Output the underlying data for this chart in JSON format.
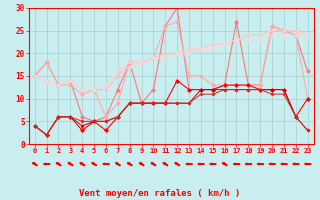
{
  "x": [
    0,
    1,
    2,
    3,
    4,
    5,
    6,
    7,
    8,
    9,
    10,
    11,
    12,
    13,
    14,
    15,
    16,
    17,
    18,
    19,
    20,
    21,
    22,
    23
  ],
  "series": [
    {
      "color": "#ff7777",
      "marker": "D",
      "markersize": 2.5,
      "linewidth": 0.8,
      "values": [
        15,
        18,
        13,
        14,
        6,
        5,
        6,
        12,
        18,
        9,
        12,
        26,
        30,
        12,
        12,
        12,
        13,
        27,
        13,
        13,
        26,
        25,
        24,
        16
      ]
    },
    {
      "color": "#ffaaaa",
      "marker": "D",
      "markersize": 2.5,
      "linewidth": 0.8,
      "values": [
        15,
        18,
        13,
        13,
        11,
        12,
        6,
        9,
        18,
        18,
        19,
        26,
        27,
        15,
        15,
        13,
        13,
        13,
        13,
        13,
        26,
        25,
        24,
        10
      ]
    },
    {
      "color": "#ffbbbb",
      "marker": "D",
      "markersize": 2,
      "linewidth": 0.7,
      "values": [
        15,
        14,
        13,
        14,
        12,
        12,
        12,
        15,
        18,
        18,
        19,
        20,
        20,
        20,
        21,
        22,
        22,
        23,
        24,
        24,
        25,
        25,
        25,
        24
      ]
    },
    {
      "color": "#ffcccc",
      "marker": "D",
      "markersize": 2,
      "linewidth": 0.7,
      "values": [
        15,
        14,
        13,
        14,
        12,
        12,
        13,
        16,
        18,
        18,
        19,
        19,
        20,
        21,
        21,
        22,
        22,
        23,
        24,
        24,
        25,
        25,
        25,
        24
      ]
    },
    {
      "color": "#ffd5d5",
      "marker": "D",
      "markersize": 2,
      "linewidth": 0.7,
      "values": [
        15,
        14,
        13,
        14,
        12,
        12,
        13,
        16,
        17,
        18,
        19,
        19,
        20,
        20,
        21,
        21,
        22,
        23,
        23,
        23,
        24,
        24,
        24,
        24
      ]
    },
    {
      "color": "#ff0000",
      "marker": "D",
      "markersize": 2.5,
      "linewidth": 0.8,
      "values": [
        4,
        2,
        6,
        6,
        3,
        5,
        3,
        6,
        9,
        9,
        9,
        9,
        14,
        12,
        12,
        12,
        13,
        13,
        13,
        12,
        12,
        12,
        6,
        10
      ]
    },
    {
      "color": "#cc0000",
      "marker": "D",
      "markersize": 2,
      "linewidth": 0.7,
      "values": [
        4,
        2,
        6,
        6,
        4,
        5,
        5,
        6,
        9,
        9,
        9,
        9,
        9,
        9,
        12,
        12,
        12,
        12,
        12,
        12,
        12,
        12,
        6,
        3
      ]
    },
    {
      "color": "#dd2222",
      "marker": "D",
      "markersize": 2,
      "linewidth": 0.7,
      "values": [
        4,
        2,
        6,
        6,
        5,
        5,
        5,
        6,
        9,
        9,
        9,
        9,
        9,
        9,
        11,
        11,
        12,
        12,
        12,
        12,
        11,
        11,
        6,
        3
      ]
    }
  ],
  "arrow_angles": [
    225,
    270,
    225,
    225,
    225,
    225,
    270,
    225,
    225,
    225,
    225,
    225,
    225,
    270,
    270,
    270,
    225,
    270,
    270,
    270,
    270,
    270,
    270,
    270
  ],
  "xlabel": "Vent moyen/en rafales ( km/h )",
  "xlim_min": -0.5,
  "xlim_max": 23.5,
  "ylim_min": 0,
  "ylim_max": 30,
  "yticks": [
    0,
    5,
    10,
    15,
    20,
    25,
    30
  ],
  "xticks": [
    0,
    1,
    2,
    3,
    4,
    5,
    6,
    7,
    8,
    9,
    10,
    11,
    12,
    13,
    14,
    15,
    16,
    17,
    18,
    19,
    20,
    21,
    22,
    23
  ],
  "bg_color": "#c8eef0",
  "grid_color": "#aacccc",
  "red_color": "#ff0000",
  "tick_fontsize": 5,
  "xlabel_fontsize": 6.5
}
